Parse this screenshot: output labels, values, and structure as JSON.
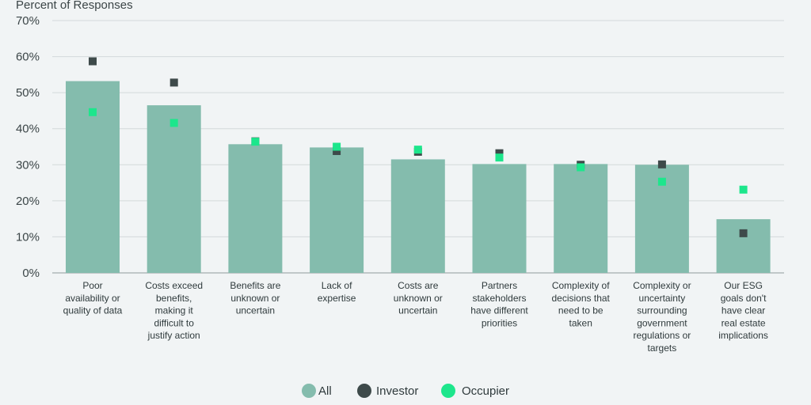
{
  "chart_data": {
    "type": "bar",
    "ylabel": "Percent of Responses",
    "ylim": [
      0,
      70
    ],
    "yticks": [
      "0%",
      "10%",
      "20%",
      "30%",
      "40%",
      "50%",
      "60%",
      "70%"
    ],
    "grid": true,
    "legend_position": "bottom-center",
    "categories": [
      [
        "Poor",
        "availability or",
        "quality of data"
      ],
      [
        "Costs exceed",
        "benefits,",
        "making it",
        "difficult to",
        "justify action"
      ],
      [
        "Benefits are",
        "unknown or",
        "uncertain"
      ],
      [
        "Lack of",
        "expertise"
      ],
      [
        "Costs are",
        "unknown or",
        "uncertain"
      ],
      [
        "Partners",
        "stakeholders",
        "have different",
        "priorities"
      ],
      [
        "Complexity of",
        "decisions that",
        "need to be",
        "taken"
      ],
      [
        "Complexity or",
        "uncertainty",
        "surrounding",
        "government",
        "regulations or",
        "targets"
      ],
      [
        "Our ESG",
        "goals don't",
        "have clear",
        "real estate",
        "implications"
      ]
    ],
    "series": [
      {
        "name": "All",
        "color": "#84bcad",
        "values": [
          53.2,
          46.5,
          35.7,
          34.8,
          31.5,
          30.2,
          30.2,
          30.0,
          14.9
        ]
      },
      {
        "name": "Investor",
        "color": "#3e4a4a",
        "values": [
          58.7,
          52.8,
          36.5,
          33.8,
          33.6,
          33.2,
          30.0,
          30.1,
          11.0
        ]
      },
      {
        "name": "Occupier",
        "color": "#1de68c",
        "values": [
          44.6,
          41.6,
          36.4,
          35.0,
          34.2,
          32.0,
          29.3,
          25.3,
          23.1
        ]
      }
    ]
  }
}
